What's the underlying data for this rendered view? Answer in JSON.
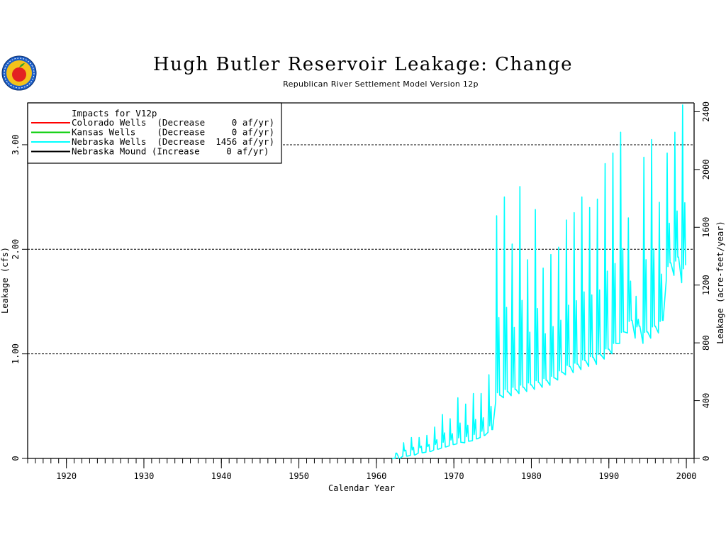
{
  "header": {
    "title": "Hugh Butler Reservoir Leakage: Change",
    "subtitle": "Republican River Settlement Model Version 12p"
  },
  "logo": {
    "icon": "seal-logo-icon",
    "colors": [
      "#1d5fc7",
      "#f4c21b",
      "#e32222",
      "#2aa02a"
    ]
  },
  "legend": {
    "heading": "Impacts for V12p",
    "entries": [
      {
        "label": "Colorado Wells  (Decrease     0 af/yr)",
        "color": "#ff0000"
      },
      {
        "label": "Kansas Wells    (Decrease     0 af/yr)",
        "color": "#00cc00"
      },
      {
        "label": "Nebraska Wells  (Decrease  1456 af/yr)",
        "color": "#00ffff"
      },
      {
        "label": "Nebraska Mound (Increase     0 af/yr)",
        "color": "#000000"
      }
    ]
  },
  "chart_data": {
    "type": "line",
    "title": "Hugh Butler Reservoir Leakage: Change",
    "subtitle": "Republican River Settlement Model Version 12p",
    "xlabel": "Calendar Year",
    "ylabel": "Leakage (cfs)",
    "y2label": "Leakage (acre-feet/year)",
    "xlim": [
      1915,
      2001
    ],
    "ylim": [
      0,
      3.4
    ],
    "y2lim": [
      0,
      2461
    ],
    "x_ticks": [
      1920,
      1930,
      1940,
      1950,
      1960,
      1970,
      1980,
      1990,
      2000
    ],
    "y_ticks": [
      {
        "value": 0,
        "label": "0"
      },
      {
        "value": 1,
        "label": "1.00"
      },
      {
        "value": 2,
        "label": "2.00"
      },
      {
        "value": 3,
        "label": "3.00"
      }
    ],
    "y2_ticks": [
      0,
      400,
      800,
      1200,
      1600,
      2000,
      2400
    ],
    "grid_lines_y": [
      1,
      2,
      3
    ],
    "legend_position": "top-left",
    "series": [
      {
        "name": "Colorado Wells",
        "color": "#ff0000",
        "peaks": [],
        "lows": []
      },
      {
        "name": "Kansas Wells",
        "color": "#00cc00",
        "peaks": [],
        "lows": []
      },
      {
        "name": "Nebraska Wells",
        "color": "#00ffff",
        "start_year": 1962,
        "peaks": [
          0.05,
          0.15,
          0.2,
          0.2,
          0.22,
          0.3,
          0.42,
          0.38,
          0.58,
          0.52,
          0.62,
          0.62,
          0.8,
          2.32,
          2.5,
          2.05,
          2.6,
          1.9,
          2.38,
          1.82,
          1.95,
          2.02,
          2.28,
          2.35,
          2.5,
          2.4,
          2.48,
          2.82,
          2.92,
          3.12,
          2.3,
          1.55,
          2.88,
          3.05,
          2.45,
          2.92,
          3.12,
          3.38
        ],
        "lows": [
          0.0,
          0.02,
          0.03,
          0.05,
          0.06,
          0.08,
          0.1,
          0.12,
          0.14,
          0.15,
          0.17,
          0.2,
          0.25,
          0.55,
          0.58,
          0.6,
          0.62,
          0.64,
          0.66,
          0.68,
          0.7,
          0.75,
          0.8,
          0.82,
          0.85,
          0.88,
          0.9,
          0.95,
          1.0,
          1.1,
          1.2,
          1.15,
          1.1,
          1.15,
          1.2,
          1.7,
          1.75,
          1.68
        ]
      },
      {
        "name": "Nebraska Mound",
        "color": "#000000",
        "peaks": [],
        "lows": []
      }
    ]
  }
}
